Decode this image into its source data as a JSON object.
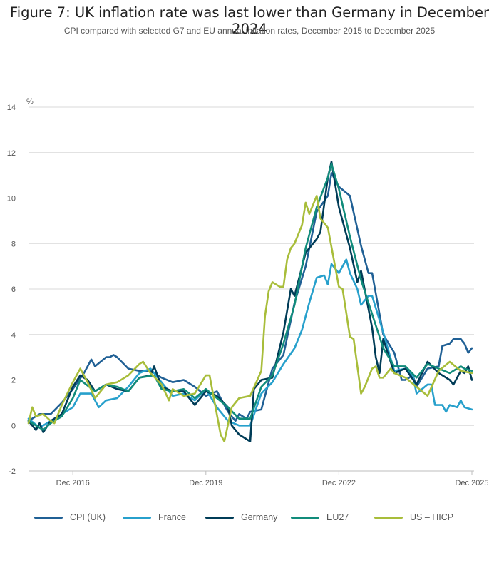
{
  "title": "Figure 7: UK inflation rate was last lower than Germany in December 2024",
  "subtitle": "CPI compared with selected G7 and EU annual inflation rates, December 2015 to December 2025",
  "chart_data": {
    "type": "line",
    "title": "Figure 7: UK inflation rate was last lower than Germany in December 2024",
    "subtitle": "CPI compared with selected G7 and EU annual inflation rates, December 2015 to December 2025",
    "ylabel": "%",
    "xlabel": "",
    "ylim": [
      -2,
      14
    ],
    "yticks": [
      "-2",
      "0",
      "2",
      "4",
      "6",
      "8",
      "10",
      "12",
      "14"
    ],
    "xticks": [
      "Dec 2016",
      "Dec 2019",
      "Dec 2022",
      "Dec 2025"
    ],
    "xrange": [
      "Dec 2015",
      "Dec 2025"
    ],
    "grid": true,
    "legend_position": "bottom",
    "series": [
      {
        "name": "CPI (UK)",
        "color": "#206095",
        "points": [
          [
            "Dec 2015",
            0.2
          ],
          [
            "Mar 2016",
            0.5
          ],
          [
            "Jun 2016",
            0.5
          ],
          [
            "Sep 2016",
            1.0
          ],
          [
            "Dec 2016",
            1.6
          ],
          [
            "Mar 2017",
            2.3
          ],
          [
            "May 2017",
            2.9
          ],
          [
            "Jun 2017",
            2.6
          ],
          [
            "Sep 2017",
            3.0
          ],
          [
            "Oct 2017",
            3.0
          ],
          [
            "Nov 2017",
            3.1
          ],
          [
            "Dec 2017",
            3.0
          ],
          [
            "Mar 2018",
            2.5
          ],
          [
            "Jun 2018",
            2.4
          ],
          [
            "Sep 2018",
            2.4
          ],
          [
            "Dec 2018",
            2.1
          ],
          [
            "Mar 2019",
            1.9
          ],
          [
            "Jun 2019",
            2.0
          ],
          [
            "Sep 2019",
            1.7
          ],
          [
            "Dec 2019",
            1.3
          ],
          [
            "Mar 2020",
            1.5
          ],
          [
            "Jun 2020",
            0.6
          ],
          [
            "Aug 2020",
            0.2
          ],
          [
            "Sep 2020",
            0.5
          ],
          [
            "Nov 2020",
            0.3
          ],
          [
            "Dec 2020",
            0.6
          ],
          [
            "Mar 2021",
            0.7
          ],
          [
            "Jun 2021",
            2.5
          ],
          [
            "Sep 2021",
            3.1
          ],
          [
            "Dec 2021",
            5.4
          ],
          [
            "Mar 2022",
            7.0
          ],
          [
            "Jun 2022",
            9.4
          ],
          [
            "Sep 2022",
            10.1
          ],
          [
            "Oct 2022",
            11.1
          ],
          [
            "Dec 2022",
            10.5
          ],
          [
            "Mar 2023",
            10.1
          ],
          [
            "Jun 2023",
            7.9
          ],
          [
            "Aug 2023",
            6.7
          ],
          [
            "Sep 2023",
            6.7
          ],
          [
            "Dec 2023",
            4.0
          ],
          [
            "Mar 2024",
            3.2
          ],
          [
            "May 2024",
            2.0
          ],
          [
            "Jun 2024",
            2.0
          ],
          [
            "Aug 2024",
            2.2
          ],
          [
            "Sep 2024",
            1.7
          ],
          [
            "Dec 2024",
            2.5
          ],
          [
            "Mar 2025",
            2.6
          ],
          [
            "Apr 2025",
            3.5
          ],
          [
            "Jun 2025",
            3.6
          ],
          [
            "Jul 2025",
            3.8
          ],
          [
            "Sep 2025",
            3.8
          ],
          [
            "Oct 2025",
            3.6
          ],
          [
            "Nov 2025",
            3.2
          ],
          [
            "Dec 2025",
            3.4
          ]
        ]
      },
      {
        "name": "France",
        "color": "#27a0cc",
        "points": [
          [
            "Dec 2015",
            0.3
          ],
          [
            "Mar 2016",
            -0.1
          ],
          [
            "May 2016",
            0.1
          ],
          [
            "Sep 2016",
            0.5
          ],
          [
            "Dec 2016",
            0.8
          ],
          [
            "Feb 2017",
            1.4
          ],
          [
            "May 2017",
            1.4
          ],
          [
            "Jul 2017",
            0.8
          ],
          [
            "Sep 2017",
            1.1
          ],
          [
            "Dec 2017",
            1.2
          ],
          [
            "Mar 2018",
            1.7
          ],
          [
            "Jun 2018",
            2.3
          ],
          [
            "Sep 2018",
            2.5
          ],
          [
            "Dec 2018",
            1.9
          ],
          [
            "Mar 2019",
            1.3
          ],
          [
            "Jun 2019",
            1.4
          ],
          [
            "Sep 2019",
            1.1
          ],
          [
            "Dec 2019",
            1.6
          ],
          [
            "Mar 2020",
            0.8
          ],
          [
            "Jun 2020",
            0.2
          ],
          [
            "Sep 2020",
            0.0
          ],
          [
            "Dec 2020",
            0.0
          ],
          [
            "Mar 2021",
            1.4
          ],
          [
            "Jun 2021",
            1.9
          ],
          [
            "Sep 2021",
            2.7
          ],
          [
            "Dec 2021",
            3.4
          ],
          [
            "Feb 2022",
            4.2
          ],
          [
            "Apr 2022",
            5.4
          ],
          [
            "Jun 2022",
            6.5
          ],
          [
            "Aug 2022",
            6.6
          ],
          [
            "Sep 2022",
            6.2
          ],
          [
            "Oct 2022",
            7.1
          ],
          [
            "Dec 2022",
            6.7
          ],
          [
            "Feb 2023",
            7.3
          ],
          [
            "Mar 2023",
            6.7
          ],
          [
            "May 2023",
            6.0
          ],
          [
            "Jun 2023",
            5.3
          ],
          [
            "Aug 2023",
            5.7
          ],
          [
            "Sep 2023",
            5.7
          ],
          [
            "Dec 2023",
            4.1
          ],
          [
            "Mar 2024",
            2.4
          ],
          [
            "Jun 2024",
            2.5
          ],
          [
            "Aug 2024",
            2.2
          ],
          [
            "Sep 2024",
            1.4
          ],
          [
            "Dec 2024",
            1.8
          ],
          [
            "Jan 2025",
            1.8
          ],
          [
            "Feb 2025",
            0.9
          ],
          [
            "Apr 2025",
            0.9
          ],
          [
            "May 2025",
            0.6
          ],
          [
            "Jun 2025",
            0.9
          ],
          [
            "Aug 2025",
            0.8
          ],
          [
            "Sep 2025",
            1.1
          ],
          [
            "Oct 2025",
            0.8
          ],
          [
            "Dec 2025",
            0.7
          ]
        ]
      },
      {
        "name": "Germany",
        "color": "#003c57",
        "points": [
          [
            "Dec 2015",
            0.2
          ],
          [
            "Feb 2016",
            -0.2
          ],
          [
            "Mar 2016",
            0.1
          ],
          [
            "Apr 2016",
            -0.3
          ],
          [
            "Jun 2016",
            0.2
          ],
          [
            "Sep 2016",
            0.5
          ],
          [
            "Dec 2016",
            1.7
          ],
          [
            "Feb 2017",
            2.2
          ],
          [
            "Apr 2017",
            2.0
          ],
          [
            "Jun 2017",
            1.5
          ],
          [
            "Sep 2017",
            1.8
          ],
          [
            "Dec 2017",
            1.6
          ],
          [
            "Mar 2018",
            1.5
          ],
          [
            "Jun 2018",
            2.1
          ],
          [
            "Sep 2018",
            2.2
          ],
          [
            "Oct 2018",
            2.6
          ],
          [
            "Dec 2018",
            1.7
          ],
          [
            "Mar 2019",
            1.5
          ],
          [
            "Jun 2019",
            1.5
          ],
          [
            "Sep 2019",
            0.9
          ],
          [
            "Dec 2019",
            1.5
          ],
          [
            "Mar 2020",
            1.3
          ],
          [
            "Jun 2020",
            0.8
          ],
          [
            "Jul 2020",
            0.0
          ],
          [
            "Sep 2020",
            -0.4
          ],
          [
            "Dec 2020",
            -0.7
          ],
          [
            "Jan 2021",
            1.6
          ],
          [
            "Mar 2021",
            2.0
          ],
          [
            "Jun 2021",
            2.1
          ],
          [
            "Sep 2021",
            4.1
          ],
          [
            "Nov 2021",
            6.0
          ],
          [
            "Dec 2021",
            5.7
          ],
          [
            "Mar 2022",
            7.6
          ],
          [
            "Jun 2022",
            8.2
          ],
          [
            "Jul 2022",
            8.5
          ],
          [
            "Sep 2022",
            10.9
          ],
          [
            "Oct 2022",
            11.6
          ],
          [
            "Dec 2022",
            9.6
          ],
          [
            "Mar 2023",
            7.8
          ],
          [
            "May 2023",
            6.3
          ],
          [
            "Jun 2023",
            6.8
          ],
          [
            "Sep 2023",
            4.3
          ],
          [
            "Oct 2023",
            3.0
          ],
          [
            "Nov 2023",
            2.3
          ],
          [
            "Dec 2023",
            3.8
          ],
          [
            "Mar 2024",
            2.3
          ],
          [
            "Jun 2024",
            2.5
          ],
          [
            "Sep 2024",
            1.8
          ],
          [
            "Dec 2024",
            2.8
          ],
          [
            "Mar 2025",
            2.3
          ],
          [
            "Jun 2025",
            2.0
          ],
          [
            "Jul 2025",
            1.8
          ],
          [
            "Sep 2025",
            2.4
          ],
          [
            "Oct 2025",
            2.3
          ],
          [
            "Nov 2025",
            2.6
          ],
          [
            "Dec 2025",
            2.0
          ]
        ]
      },
      {
        "name": "EU27",
        "color": "#118c7b",
        "points": [
          [
            "Dec 2015",
            0.2
          ],
          [
            "Mar 2016",
            -0.1
          ],
          [
            "Apr 2016",
            -0.2
          ],
          [
            "Jun 2016",
            0.1
          ],
          [
            "Sep 2016",
            0.4
          ],
          [
            "Dec 2016",
            1.2
          ],
          [
            "Feb 2017",
            2.0
          ],
          [
            "Jun 2017",
            1.5
          ],
          [
            "Sep 2017",
            1.8
          ],
          [
            "Dec 2017",
            1.7
          ],
          [
            "Mar 2018",
            1.5
          ],
          [
            "Jun 2018",
            2.1
          ],
          [
            "Oct 2018",
            2.2
          ],
          [
            "Dec 2018",
            1.6
          ],
          [
            "Mar 2019",
            1.5
          ],
          [
            "Jun 2019",
            1.6
          ],
          [
            "Sep 2019",
            1.2
          ],
          [
            "Dec 2019",
            1.6
          ],
          [
            "Mar 2020",
            1.2
          ],
          [
            "Jun 2020",
            0.8
          ],
          [
            "Sep 2020",
            0.3
          ],
          [
            "Dec 2020",
            0.3
          ],
          [
            "Mar 2021",
            1.7
          ],
          [
            "Jun 2021",
            2.2
          ],
          [
            "Sep 2021",
            3.6
          ],
          [
            "Dec 2021",
            5.3
          ],
          [
            "Mar 2022",
            7.8
          ],
          [
            "Jun 2022",
            9.6
          ],
          [
            "Sep 2022",
            10.9
          ],
          [
            "Oct 2022",
            11.5
          ],
          [
            "Dec 2022",
            10.4
          ],
          [
            "Mar 2023",
            8.3
          ],
          [
            "Jun 2023",
            6.4
          ],
          [
            "Sep 2023",
            4.9
          ],
          [
            "Dec 2023",
            3.4
          ],
          [
            "Mar 2024",
            2.6
          ],
          [
            "Jun 2024",
            2.6
          ],
          [
            "Sep 2024",
            2.1
          ],
          [
            "Dec 2024",
            2.7
          ],
          [
            "Mar 2025",
            2.5
          ],
          [
            "Jun 2025",
            2.3
          ],
          [
            "Sep 2025",
            2.6
          ],
          [
            "Oct 2025",
            2.5
          ],
          [
            "Dec 2025",
            2.4
          ]
        ]
      },
      {
        "name": "US – HICP",
        "color": "#a8bd3a",
        "points": [
          [
            "Dec 2015",
            0.1
          ],
          [
            "Jan 2016",
            0.8
          ],
          [
            "Feb 2016",
            0.4
          ],
          [
            "Apr 2016",
            0.5
          ],
          [
            "Jun 2016",
            0.2
          ],
          [
            "Jul 2016",
            0.1
          ],
          [
            "Sep 2016",
            0.9
          ],
          [
            "Dec 2016",
            1.9
          ],
          [
            "Feb 2017",
            2.5
          ],
          [
            "Apr 2017",
            1.9
          ],
          [
            "Jun 2017",
            1.2
          ],
          [
            "Sep 2017",
            1.8
          ],
          [
            "Dec 2017",
            1.9
          ],
          [
            "Mar 2018",
            2.2
          ],
          [
            "Jun 2018",
            2.7
          ],
          [
            "Jul 2018",
            2.8
          ],
          [
            "Sep 2018",
            2.3
          ],
          [
            "Dec 2018",
            1.8
          ],
          [
            "Feb 2019",
            1.1
          ],
          [
            "Mar 2019",
            1.6
          ],
          [
            "Jun 2019",
            1.3
          ],
          [
            "Sep 2019",
            1.4
          ],
          [
            "Dec 2019",
            2.2
          ],
          [
            "Jan 2020",
            2.2
          ],
          [
            "Apr 2020",
            -0.4
          ],
          [
            "May 2020",
            -0.7
          ],
          [
            "Jul 2020",
            0.8
          ],
          [
            "Sep 2020",
            1.2
          ],
          [
            "Dec 2020",
            1.3
          ],
          [
            "Mar 2021",
            2.4
          ],
          [
            "Apr 2021",
            4.8
          ],
          [
            "May 2021",
            5.9
          ],
          [
            "Jun 2021",
            6.3
          ],
          [
            "Aug 2021",
            6.1
          ],
          [
            "Sep 2021",
            6.1
          ],
          [
            "Oct 2021",
            7.3
          ],
          [
            "Nov 2021",
            7.8
          ],
          [
            "Dec 2021",
            8.0
          ],
          [
            "Feb 2022",
            8.8
          ],
          [
            "Mar 2022",
            9.8
          ],
          [
            "Apr 2022",
            9.3
          ],
          [
            "Jun 2022",
            10.1
          ],
          [
            "Jul 2022",
            9.1
          ],
          [
            "Sep 2022",
            8.7
          ],
          [
            "Dec 2022",
            6.1
          ],
          [
            "Jan 2023",
            6.0
          ],
          [
            "Mar 2023",
            3.9
          ],
          [
            "Apr 2023",
            3.8
          ],
          [
            "Jun 2023",
            1.4
          ],
          [
            "Jul 2023",
            1.7
          ],
          [
            "Sep 2023",
            2.5
          ],
          [
            "Oct 2023",
            2.6
          ],
          [
            "Nov 2023",
            2.1
          ],
          [
            "Dec 2023",
            2.1
          ],
          [
            "Feb 2024",
            2.5
          ],
          [
            "Mar 2024",
            2.3
          ],
          [
            "Jun 2024",
            2.1
          ],
          [
            "Sep 2024",
            1.7
          ],
          [
            "Dec 2024",
            1.3
          ],
          [
            "Mar 2025",
            2.4
          ],
          [
            "Jun 2025",
            2.8
          ],
          [
            "Sep 2025",
            2.4
          ],
          [
            "Dec 2025",
            2.3
          ]
        ]
      }
    ]
  }
}
